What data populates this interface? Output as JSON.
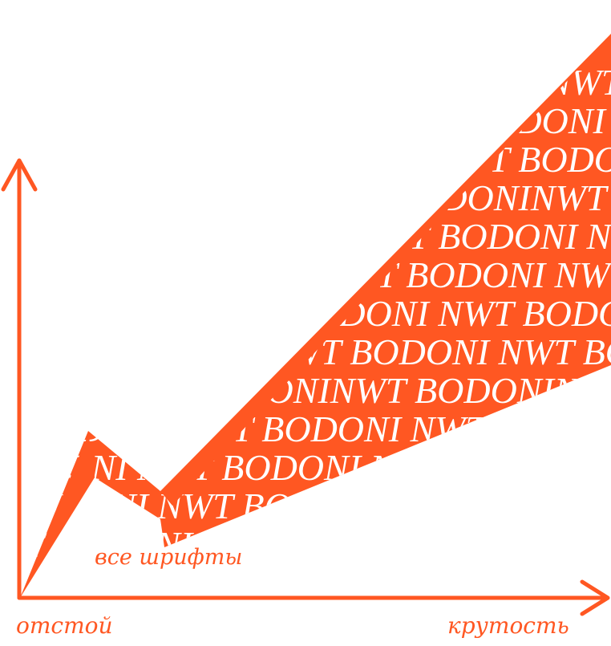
{
  "labels": {
    "x_left": "отстой",
    "x_right": "крутость",
    "curve": "все шрифты"
  },
  "pattern": {
    "lines": [
      "NWT BODONI NWT BODONI NWT BODONI NWT BODONI NWT BODONI",
      "BODONI NWT BODONI NWT BODONI NWT BODONI NWT BODONI NWT",
      "NWT BODONI NWT BODONI NWT BODONI NWT BODONI NWT BODONI",
      "BODONINWT BODONINWT BODONINWT BODONINWT BODONINWT BODONI",
      "NWT BODONI NWT BODONI NWT BODONI NWT BODONI NWT BODONI"
    ]
  },
  "colors": {
    "accent": "#ff5722",
    "text_on_accent": "#ffffff",
    "background": "#ffffff"
  },
  "icons": {
    "y_axis_arrow": "arrow-up-icon",
    "x_axis_arrow": "arrow-right-icon"
  }
}
